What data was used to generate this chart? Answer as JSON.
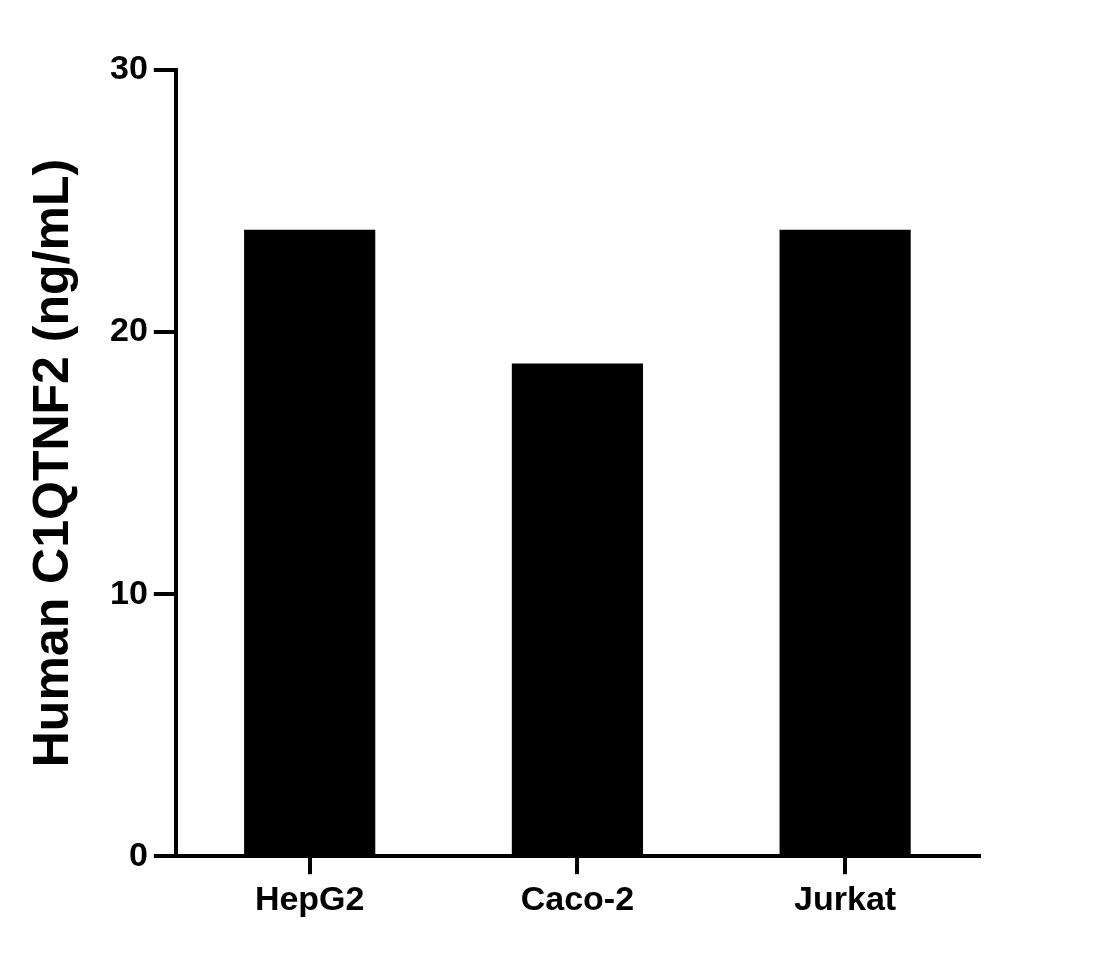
{
  "chart_data": {
    "type": "bar",
    "ylabel": "Human C1QTNF2 (ng/mL)",
    "categories": [
      "HepG2",
      "Caco-2",
      "Jurkat"
    ],
    "values": [
      23.9,
      18.8,
      23.9
    ],
    "color": "#000000",
    "ylim": [
      0,
      30
    ],
    "yticks": [
      0,
      10,
      20,
      30
    ],
    "grid": false,
    "legend": false
  }
}
